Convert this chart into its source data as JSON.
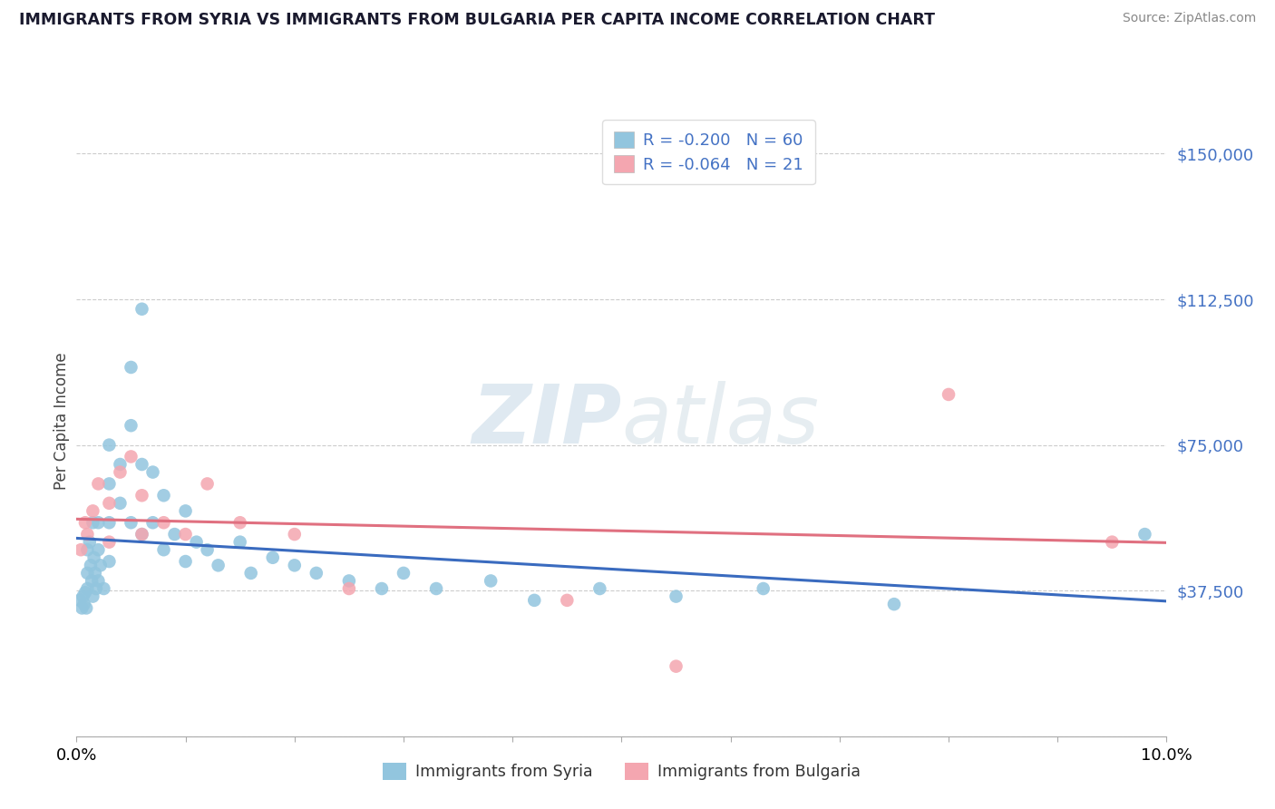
{
  "title": "IMMIGRANTS FROM SYRIA VS IMMIGRANTS FROM BULGARIA PER CAPITA INCOME CORRELATION CHART",
  "source": "Source: ZipAtlas.com",
  "ylabel": "Per Capita Income",
  "xlim": [
    0.0,
    0.1
  ],
  "ylim": [
    0,
    162500
  ],
  "yticks": [
    0,
    37500,
    75000,
    112500,
    150000
  ],
  "ytick_labels": [
    "",
    "$37,500",
    "$75,000",
    "$112,500",
    "$150,000"
  ],
  "legend_r_syria": "-0.200",
  "legend_n_syria": "60",
  "legend_r_bulgaria": "-0.064",
  "legend_n_bulgaria": "21",
  "color_syria": "#92c5de",
  "color_bulgaria": "#f4a6b0",
  "line_color_syria": "#3a6bbf",
  "line_color_bulgaria": "#e07080",
  "axis_color": "#4472c4",
  "watermark_text": "ZIPatlas",
  "syria_x": [
    0.0003,
    0.0005,
    0.0006,
    0.0007,
    0.0008,
    0.0009,
    0.001,
    0.001,
    0.001,
    0.0012,
    0.0013,
    0.0014,
    0.0015,
    0.0015,
    0.0016,
    0.0017,
    0.0018,
    0.002,
    0.002,
    0.002,
    0.0022,
    0.0025,
    0.003,
    0.003,
    0.003,
    0.003,
    0.004,
    0.004,
    0.005,
    0.005,
    0.005,
    0.006,
    0.006,
    0.006,
    0.007,
    0.007,
    0.008,
    0.008,
    0.009,
    0.01,
    0.01,
    0.011,
    0.012,
    0.013,
    0.015,
    0.016,
    0.018,
    0.02,
    0.022,
    0.025,
    0.028,
    0.03,
    0.033,
    0.038,
    0.042,
    0.048,
    0.055,
    0.063,
    0.075,
    0.098
  ],
  "syria_y": [
    35000,
    33000,
    36000,
    34000,
    37000,
    33000,
    48000,
    42000,
    38000,
    50000,
    44000,
    40000,
    55000,
    36000,
    46000,
    42000,
    38000,
    55000,
    48000,
    40000,
    44000,
    38000,
    75000,
    65000,
    55000,
    45000,
    70000,
    60000,
    95000,
    80000,
    55000,
    110000,
    70000,
    52000,
    68000,
    55000,
    62000,
    48000,
    52000,
    58000,
    45000,
    50000,
    48000,
    44000,
    50000,
    42000,
    46000,
    44000,
    42000,
    40000,
    38000,
    42000,
    38000,
    40000,
    35000,
    38000,
    36000,
    38000,
    34000,
    52000
  ],
  "bulgaria_x": [
    0.0004,
    0.0008,
    0.001,
    0.0015,
    0.002,
    0.003,
    0.003,
    0.004,
    0.005,
    0.006,
    0.006,
    0.008,
    0.01,
    0.012,
    0.015,
    0.02,
    0.025,
    0.045,
    0.055,
    0.08,
    0.095
  ],
  "bulgaria_y": [
    48000,
    55000,
    52000,
    58000,
    65000,
    60000,
    50000,
    68000,
    72000,
    62000,
    52000,
    55000,
    52000,
    65000,
    55000,
    52000,
    38000,
    35000,
    18000,
    88000,
    50000
  ]
}
